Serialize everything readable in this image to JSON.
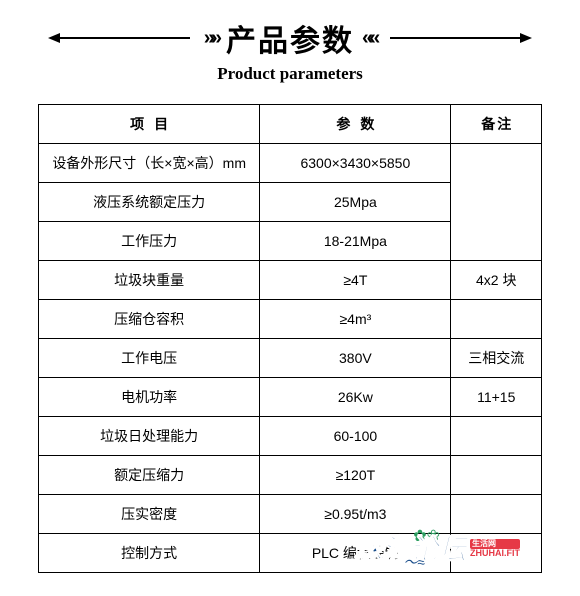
{
  "header": {
    "title_cn": "产品参数",
    "title_en": "Product parameters",
    "quote_left": "»»",
    "quote_right": "««"
  },
  "table": {
    "headers": {
      "item": "项目",
      "param": "参数",
      "remark": "备注"
    },
    "rows": [
      {
        "item": "设备外形尺寸（长×宽×高）mm",
        "param": "6300×3430×5850",
        "remark": ""
      },
      {
        "item": "液压系统额定压力",
        "param": "25Mpa",
        "remark": ""
      },
      {
        "item": "工作压力",
        "param": "18-21Mpa",
        "remark": ""
      },
      {
        "item": "垃圾块重量",
        "param": "≥4T",
        "remark": "4x2 块"
      },
      {
        "item": "压缩仓容积",
        "param": "≥4m³",
        "remark": ""
      },
      {
        "item": "工作电压",
        "param": "380V",
        "remark": "三相交流"
      },
      {
        "item": "电机功率",
        "param": "26Kw",
        "remark": "11+15"
      },
      {
        "item": "垃圾日处理能力",
        "param": "60-100",
        "remark": ""
      },
      {
        "item": "额定压缩力",
        "param": "≥120T",
        "remark": ""
      },
      {
        "item": "压实密度",
        "param": "≥0.95t/m3",
        "remark": ""
      },
      {
        "item": "控制方式",
        "param": "PLC 编程控制",
        "remark": ""
      }
    ]
  },
  "watermark": {
    "brand_cn": "珠海论坛",
    "badge": "生活网",
    "url": "ZHUHAI.FIT",
    "deco": "✿❀",
    "wave": "～≈"
  },
  "colors": {
    "border": "#000000",
    "brand_blue": "#1b4f8c",
    "brand_red": "#e63946",
    "brand_green": "#2a9d5f",
    "background": "#ffffff"
  }
}
